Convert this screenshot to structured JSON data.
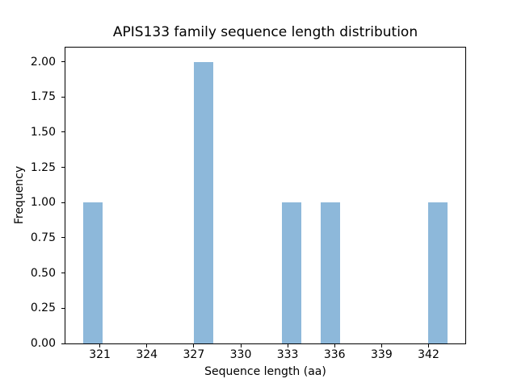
{
  "chart_data": {
    "type": "bar",
    "subtype": "histogram",
    "title": "APIS133 family sequence length distribution",
    "xlabel": "Sequence length (aa)",
    "ylabel": "Frequency",
    "xlim": [
      318.8,
      344.35
    ],
    "ylim": [
      0,
      2.1
    ],
    "grid": false,
    "legend": null,
    "bar_color": "#8db8da",
    "spine_color": "#000000",
    "background_color": "#ffffff",
    "xticks": [
      {
        "value": 321,
        "label": "321"
      },
      {
        "value": 324,
        "label": "324"
      },
      {
        "value": 327,
        "label": "327"
      },
      {
        "value": 330,
        "label": "330"
      },
      {
        "value": 333,
        "label": "333"
      },
      {
        "value": 336,
        "label": "336"
      },
      {
        "value": 339,
        "label": "339"
      },
      {
        "value": 342,
        "label": "342"
      }
    ],
    "yticks": [
      {
        "value": 0.0,
        "label": "0.00"
      },
      {
        "value": 0.25,
        "label": "0.25"
      },
      {
        "value": 0.5,
        "label": "0.50"
      },
      {
        "value": 0.75,
        "label": "0.75"
      },
      {
        "value": 1.0,
        "label": "1.00"
      },
      {
        "value": 1.25,
        "label": "1.25"
      },
      {
        "value": 1.5,
        "label": "1.50"
      },
      {
        "value": 1.75,
        "label": "1.75"
      },
      {
        "value": 2.0,
        "label": "2.00"
      }
    ],
    "bars": [
      {
        "x0": 319.94,
        "x1": 321.18,
        "count": 1
      },
      {
        "x0": 327.0,
        "x1": 328.24,
        "count": 2
      },
      {
        "x0": 332.62,
        "x1": 333.86,
        "count": 1
      },
      {
        "x0": 335.1,
        "x1": 336.34,
        "count": 1
      },
      {
        "x0": 341.95,
        "x1": 343.19,
        "count": 1
      }
    ]
  }
}
